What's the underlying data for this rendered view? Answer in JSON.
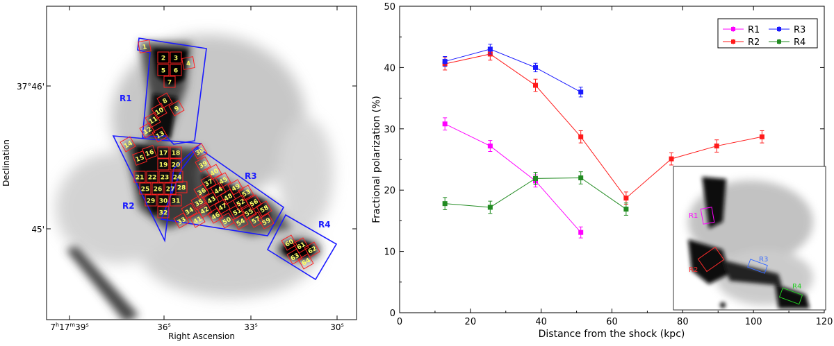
{
  "left_panel": {
    "xlabel": "Right Ascension",
    "ylabel": "Declination",
    "x_ticks": [
      {
        "label": "7h17m39s",
        "ra_sec": 39
      },
      {
        "label": "36s",
        "ra_sec": 36
      },
      {
        "label": "33s",
        "ra_sec": 33
      },
      {
        "label": "30s",
        "ra_sec": 30
      }
    ],
    "y_ticks": [
      {
        "label": "37°46'",
        "dec_arcmin": 46
      },
      {
        "label": "45'",
        "dec_arcmin": 45
      }
    ],
    "region_labels": [
      {
        "id": "R1",
        "text": "R1"
      },
      {
        "id": "R2",
        "text": "R2"
      },
      {
        "id": "R3",
        "text": "R3"
      },
      {
        "id": "R4",
        "text": "R4"
      }
    ],
    "box_numbers": [
      "1",
      "2",
      "3",
      "4",
      "5",
      "6",
      "7",
      "8",
      "9",
      "10",
      "11",
      "12",
      "13",
      "14",
      "15",
      "16",
      "17",
      "18",
      "19",
      "20",
      "21",
      "22",
      "23",
      "24",
      "25",
      "26",
      "27",
      "28",
      "29",
      "30",
      "31",
      "32",
      "33",
      "34",
      "35",
      "36",
      "37",
      "38",
      "39",
      "40",
      "41",
      "42",
      "43",
      "44",
      "45",
      "46",
      "47",
      "48",
      "49",
      "50",
      "51",
      "52",
      "53",
      "54",
      "55",
      "56",
      "57",
      "58",
      "59",
      "60",
      "61",
      "62",
      "63",
      "64"
    ]
  },
  "chart_data": {
    "type": "line",
    "title": "",
    "xlabel": "Distance from the shock (kpc)",
    "ylabel": "Fractional polarization (%)",
    "xlim": [
      0,
      120
    ],
    "ylim": [
      0,
      50
    ],
    "x_ticks": [
      0,
      20,
      40,
      60,
      80,
      100,
      120
    ],
    "y_ticks": [
      0,
      10,
      20,
      30,
      40,
      50
    ],
    "legend_position": "top-right",
    "series": [
      {
        "name": "R1",
        "color": "#ff00ff",
        "x": [
          12.8,
          25.6,
          38.4,
          51.2
        ],
        "y": [
          30.8,
          27.2,
          21.5,
          13.1
        ],
        "err": [
          1.0,
          0.9,
          1.0,
          0.9
        ]
      },
      {
        "name": "R2",
        "color": "#ff1a1a",
        "x": [
          12.8,
          25.6,
          38.4,
          51.2,
          64.0,
          76.8,
          89.6,
          102.4
        ],
        "y": [
          40.6,
          42.2,
          37.1,
          28.7,
          18.7,
          25.1,
          27.2,
          28.7
        ],
        "err": [
          1.0,
          1.0,
          1.0,
          1.0,
          1.0,
          1.0,
          1.0,
          1.0
        ]
      },
      {
        "name": "R3",
        "color": "#1a1aff",
        "x": [
          12.8,
          25.6,
          38.4,
          51.2
        ],
        "y": [
          41.0,
          43.0,
          40.0,
          36.0
        ],
        "err": [
          0.8,
          0.8,
          0.7,
          0.8
        ]
      },
      {
        "name": "R4",
        "color": "#228b22",
        "x": [
          12.8,
          25.6,
          38.4,
          51.2,
          64.0
        ],
        "y": [
          17.8,
          17.2,
          21.9,
          22.0,
          16.9
        ],
        "err": [
          1.0,
          1.0,
          1.0,
          1.0,
          1.0
        ]
      }
    ],
    "inset_labels": [
      "R1",
      "R2",
      "R3",
      "R4"
    ]
  }
}
